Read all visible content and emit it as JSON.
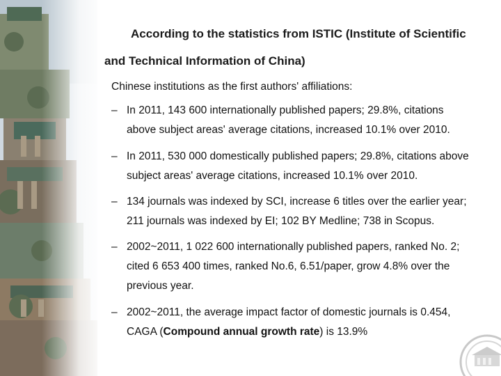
{
  "heading": {
    "line1": "According to the statistics from ISTIC (Institute of Scientific",
    "line2": "and Technical Information of China)"
  },
  "intro": "Chinese institutions as the first authors' affiliations:",
  "bullet_marker": "–",
  "bullets": [
    {
      "lines": [
        "In 2011, 143 600 internationally published papers; 29.8%, citations",
        "above subject areas' average citations, increased 10.1% over 2010."
      ]
    },
    {
      "lines": [
        "In 2011, 530 000 domestically published papers; 29.8%, citations above",
        "subject areas' average citations, increased 10.1% over 2010."
      ]
    },
    {
      "lines": [
        "134 journals was indexed by SCI, increase 6 titles over the earlier year;",
        "211 journals was indexed by EI; 102 BY Medline; 738 in Scopus."
      ]
    },
    {
      "lines": [
        "2002~2011, 1 022 600 internationally published papers, ranked No. 2;",
        "cited 6 653 400 times, ranked No.6, 6.51/paper, grow 4.8% over the",
        "previous year."
      ]
    },
    {
      "line1": "2002~2011,  the average impact factor of domestic journals is 0.454,",
      "line2_pre": "CAGA (",
      "line2_bold": "Compound annual growth rate",
      "line2_post": ") is 13.9%"
    }
  ]
}
